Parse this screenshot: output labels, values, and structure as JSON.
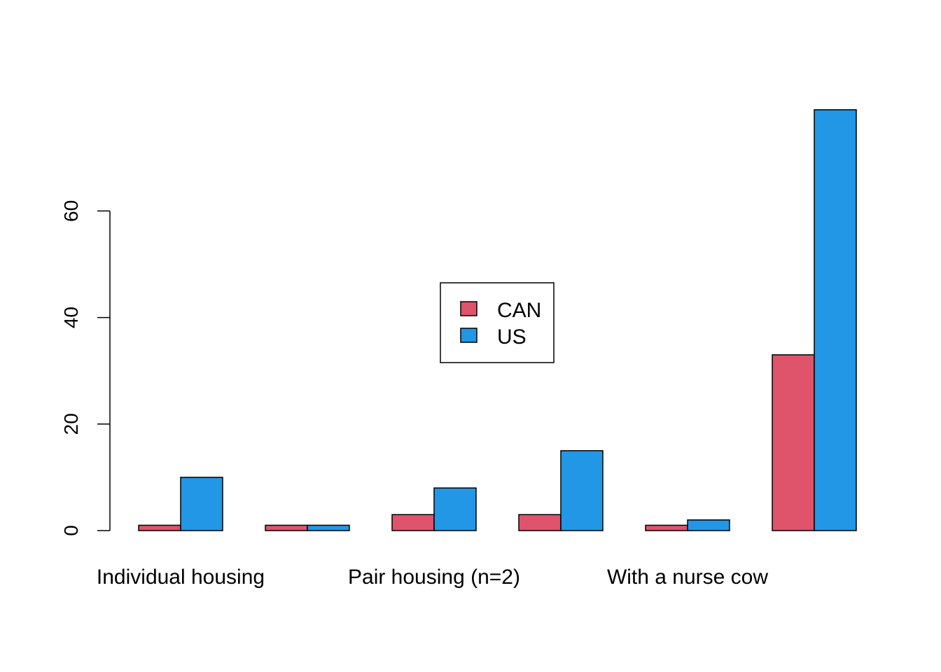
{
  "chart_data": {
    "type": "bar",
    "categories": [
      "Individual housing",
      "",
      "Pair housing (n=2)",
      "",
      "With a nurse cow",
      ""
    ],
    "series": [
      {
        "name": "CAN",
        "color": "#DF536B",
        "values": [
          1,
          1,
          3,
          3,
          1,
          33
        ]
      },
      {
        "name": "US",
        "color": "#2297E6",
        "values": [
          10,
          1,
          8,
          15,
          2,
          79
        ]
      }
    ],
    "title": "",
    "xlabel": "",
    "ylabel": "",
    "ylim": [
      0,
      79
    ],
    "yticks": [
      0,
      20,
      40,
      60
    ],
    "grid": false,
    "legend_position": "center"
  }
}
